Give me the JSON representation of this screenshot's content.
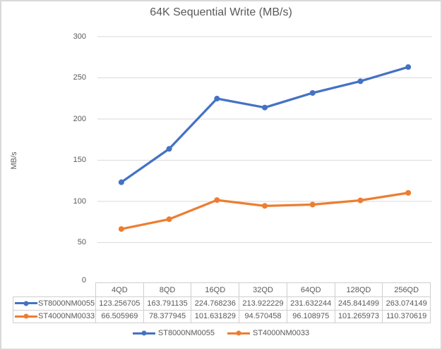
{
  "chart_data": {
    "type": "line",
    "title": "64K Sequential Write (MB/s)",
    "xlabel": "",
    "ylabel": "MB/s",
    "categories": [
      "4QD",
      "8QD",
      "16QD",
      "32QD",
      "64QD",
      "128QD",
      "256QD"
    ],
    "series": [
      {
        "name": "ST8000NM0055",
        "color": "#4472C4",
        "marker": "circle",
        "values": [
          123.256705,
          163.791135,
          224.768236,
          213.922229,
          231.632244,
          245.841499,
          263.074149
        ]
      },
      {
        "name": "ST4000NM0033",
        "color": "#ED7D31",
        "marker": "circle",
        "values": [
          66.505969,
          78.377945,
          101.631829,
          94.570458,
          96.108975,
          101.265973,
          110.370619
        ]
      }
    ],
    "ylim": [
      0,
      300
    ],
    "yticks": [
      0,
      50,
      100,
      150,
      200,
      250,
      300
    ],
    "grid": true,
    "legend_position": "bottom",
    "data_table_shown": true
  },
  "data_table": {
    "header": [
      "4QD",
      "8QD",
      "16QD",
      "32QD",
      "64QD",
      "128QD",
      "256QD"
    ],
    "rows": [
      {
        "label": "ST8000NM0055",
        "color": "#4472C4",
        "cells": [
          "123.256705",
          "163.791135",
          "224.768236",
          "213.922229",
          "231.632244",
          "245.841499",
          "263.074149"
        ]
      },
      {
        "label": "ST4000NM0033",
        "color": "#ED7D31",
        "cells": [
          "66.505969",
          "78.377945",
          "101.631829",
          "94.570458",
          "96.108975",
          "101.265973",
          "110.370619"
        ]
      }
    ]
  },
  "legend": {
    "items": [
      {
        "label": "ST8000NM0055",
        "color": "#4472C4"
      },
      {
        "label": "ST4000NM0033",
        "color": "#ED7D31"
      }
    ]
  },
  "colors": {
    "series_blue": "#4472C4",
    "series_orange": "#ED7D31",
    "gridline": "#D9D9D9",
    "axis_text": "#595959",
    "table_border": "#D0CECE",
    "frame_border": "#D9D9D9",
    "background": "#FFFFFF"
  }
}
